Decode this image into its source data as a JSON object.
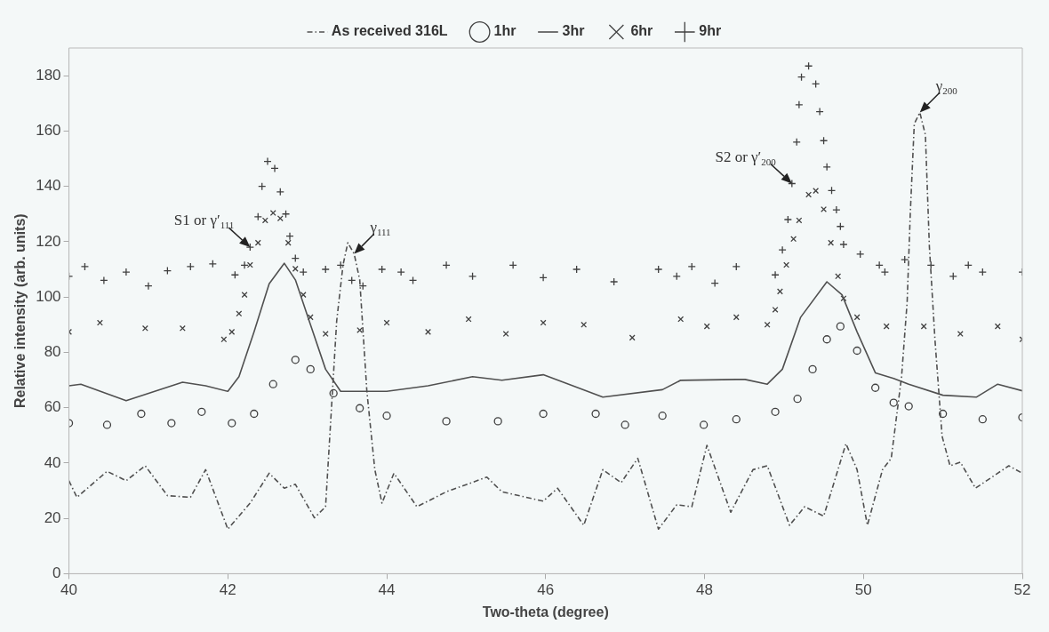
{
  "chart_data": {
    "type": "line",
    "xlabel": "Two-theta (degree)",
    "ylabel": "Relative intensity (arb. units)",
    "xlim": [
      40,
      52
    ],
    "xticks": [
      40,
      42,
      44,
      46,
      48,
      50,
      52
    ],
    "ylim": [
      0,
      190
    ],
    "yticks": [
      0,
      20,
      40,
      60,
      80,
      100,
      120,
      140,
      160,
      180
    ],
    "grid": false,
    "legend": "top",
    "annotations": [
      {
        "text": "S1 or γ′$_{111}$",
        "x": 42.28,
        "y": 118
      },
      {
        "text": "γ$_{111}$",
        "x": 43.59,
        "y": 115.6
      },
      {
        "text": "S2 or γ′$_{200}$",
        "x": 49.1,
        "y": 141
      },
      {
        "text": "γ$_{200}$",
        "x": 50.71,
        "y": 166.7
      }
    ],
    "series": [
      {
        "name": "As received 316L",
        "type": "line",
        "marker": "none",
        "line_style": "dashed",
        "color": "#505050",
        "x": [
          40,
          40.1,
          40.48,
          40.72,
          40.96,
          41.24,
          41.53,
          41.72,
          42,
          42.28,
          42.52,
          42.71,
          42.85,
          43.09,
          43.23,
          43.3,
          43.37,
          43.45,
          43.51,
          43.59,
          43.66,
          43.75,
          43.85,
          43.94,
          44.09,
          44.38,
          44.75,
          45.26,
          45.45,
          45.97,
          46.15,
          46.48,
          46.72,
          46.95,
          47.16,
          47.42,
          47.65,
          47.84,
          48.03,
          48.33,
          48.61,
          48.79,
          49.07,
          49.26,
          49.5,
          49.78,
          49.92,
          50.05,
          50.24,
          50.35,
          50.48,
          50.55,
          50.59,
          50.64,
          50.71,
          50.78,
          50.83,
          50.9,
          50.99,
          51.09,
          51.22,
          51.41,
          51.69,
          51.83,
          52
        ],
        "values": [
          33.6,
          27.6,
          37,
          33.6,
          39,
          28.2,
          27.6,
          37.6,
          16.1,
          25.5,
          36.3,
          30.9,
          32.3,
          20.2,
          24.2,
          57.8,
          91.4,
          111.6,
          119.6,
          115.6,
          106.2,
          65.9,
          37.6,
          25.5,
          36.3,
          24.2,
          29.6,
          34.9,
          29.6,
          26.2,
          30.9,
          17.5,
          37.6,
          32.9,
          41.7,
          16.1,
          24.9,
          24.2,
          46.4,
          22.2,
          37.6,
          39,
          17.5,
          24.2,
          20.8,
          47,
          37.6,
          17.5,
          37.6,
          41.7,
          71.2,
          98.1,
          130.4,
          162.6,
          166.7,
          158.6,
          118.3,
          84.7,
          49.7,
          39,
          40.3,
          30.9,
          36.3,
          39,
          36.3
        ]
      },
      {
        "name": "1hr",
        "type": "scatter",
        "marker": "circle",
        "color": "#404040",
        "x": [
          40,
          40.48,
          40.91,
          41.29,
          41.67,
          42.05,
          42.33,
          42.57,
          42.85,
          43.04,
          43.33,
          43.66,
          44,
          44.75,
          45.4,
          45.97,
          46.63,
          47,
          47.47,
          47.99,
          48.4,
          48.89,
          49.17,
          49.36,
          49.54,
          49.71,
          49.92,
          50.15,
          50.38,
          50.57,
          51,
          51.5,
          52
        ],
        "values": [
          54.4,
          53.8,
          57.8,
          54.4,
          58.5,
          54.4,
          57.8,
          68.5,
          77.3,
          73.9,
          65.2,
          59.8,
          57.1,
          55.1,
          55.1,
          57.8,
          57.8,
          53.8,
          57.1,
          53.8,
          55.8,
          58.5,
          63.2,
          73.9,
          84.7,
          89.4,
          80.6,
          67.2,
          61.8,
          60.5,
          57.8,
          55.8,
          56.5
        ]
      },
      {
        "name": "3hr",
        "type": "line",
        "marker": "none",
        "line_style": "solid",
        "color": "#505050",
        "x": [
          40,
          40.15,
          40.72,
          41.43,
          41.72,
          42,
          42.14,
          42.33,
          42.52,
          42.71,
          42.85,
          43.04,
          43.23,
          43.42,
          44,
          44.52,
          45.08,
          45.45,
          45.97,
          46.29,
          46.72,
          47.47,
          47.7,
          48.4,
          48.51,
          48.79,
          48.98,
          49.21,
          49.54,
          49.73,
          49.92,
          50.15,
          50.38,
          50.57,
          51,
          51.42,
          51.69,
          52
        ],
        "values": [
          67.9,
          68.5,
          62.5,
          69.2,
          67.9,
          65.9,
          71.2,
          87.4,
          104.8,
          112.2,
          106.2,
          90,
          73.9,
          65.9,
          65.9,
          67.9,
          71.2,
          69.9,
          71.9,
          68.5,
          63.8,
          66.5,
          69.9,
          70.2,
          70.2,
          68.5,
          73.9,
          92.7,
          105.5,
          100.8,
          87.4,
          72.6,
          70.6,
          68.5,
          64.5,
          63.8,
          68.5,
          66.1
        ]
      },
      {
        "name": "6hr",
        "type": "scatter",
        "marker": "x",
        "color": "#404040",
        "x": [
          40,
          40.39,
          40.96,
          41.43,
          41.95,
          42.05,
          42.14,
          42.21,
          42.28,
          42.38,
          42.47,
          42.57,
          42.66,
          42.76,
          42.85,
          42.95,
          43.04,
          43.23,
          43.66,
          44,
          44.52,
          45.03,
          45.5,
          45.97,
          46.48,
          47.09,
          47.7,
          48.03,
          48.4,
          48.79,
          48.89,
          48.95,
          49.03,
          49.12,
          49.19,
          49.31,
          49.4,
          49.5,
          49.59,
          49.68,
          49.75,
          49.92,
          50.29,
          50.76,
          51.22,
          51.69,
          52
        ],
        "values": [
          87.4,
          90.7,
          88.7,
          88.7,
          84.7,
          87.4,
          94,
          100.8,
          111.6,
          119.6,
          127.7,
          130.4,
          128.4,
          119.6,
          110.2,
          100.8,
          92.7,
          86.7,
          88,
          90.7,
          87.4,
          92,
          86.7,
          90.7,
          90,
          85.3,
          92,
          89.4,
          92.7,
          90,
          95.4,
          102,
          111.6,
          121,
          127.7,
          137,
          138.4,
          131.7,
          119.6,
          107.5,
          99.5,
          92.7,
          89.4,
          89.4,
          86.7,
          89.4,
          84.7
        ]
      },
      {
        "name": "9hr",
        "type": "scatter",
        "marker": "cross",
        "color": "#404040",
        "x": [
          40,
          40.2,
          40.44,
          40.72,
          41,
          41.24,
          41.53,
          41.81,
          42.09,
          42.21,
          42.28,
          42.38,
          42.43,
          42.5,
          42.59,
          42.66,
          42.73,
          42.78,
          42.85,
          42.95,
          43.23,
          43.42,
          43.56,
          43.7,
          43.94,
          44.18,
          44.33,
          44.75,
          45.08,
          45.59,
          45.97,
          46.39,
          46.86,
          47.42,
          47.65,
          47.84,
          48.13,
          48.4,
          48.89,
          48.98,
          49.05,
          49.1,
          49.16,
          49.19,
          49.22,
          49.31,
          49.4,
          49.45,
          49.5,
          49.54,
          49.6,
          49.66,
          49.71,
          49.75,
          49.96,
          50.2,
          50.27,
          50.52,
          50.85,
          51.13,
          51.32,
          51.5,
          52
        ],
        "values": [
          107.5,
          111,
          106,
          109,
          104,
          109.5,
          111,
          112,
          108,
          111.5,
          118,
          129,
          140,
          149,
          146.5,
          138,
          130,
          122,
          114,
          109,
          110,
          111.5,
          106,
          104,
          110,
          109,
          106,
          111.5,
          107.5,
          111.5,
          107,
          110,
          105.5,
          110,
          107.5,
          111,
          105,
          111,
          108,
          117,
          128,
          141,
          156,
          169.5,
          179.5,
          183.5,
          177,
          167,
          156.5,
          147,
          138.5,
          131.5,
          125.5,
          119,
          115.5,
          111.5,
          109,
          113.5,
          111.5,
          107.5,
          111.5,
          109,
          109
        ]
      }
    ]
  }
}
